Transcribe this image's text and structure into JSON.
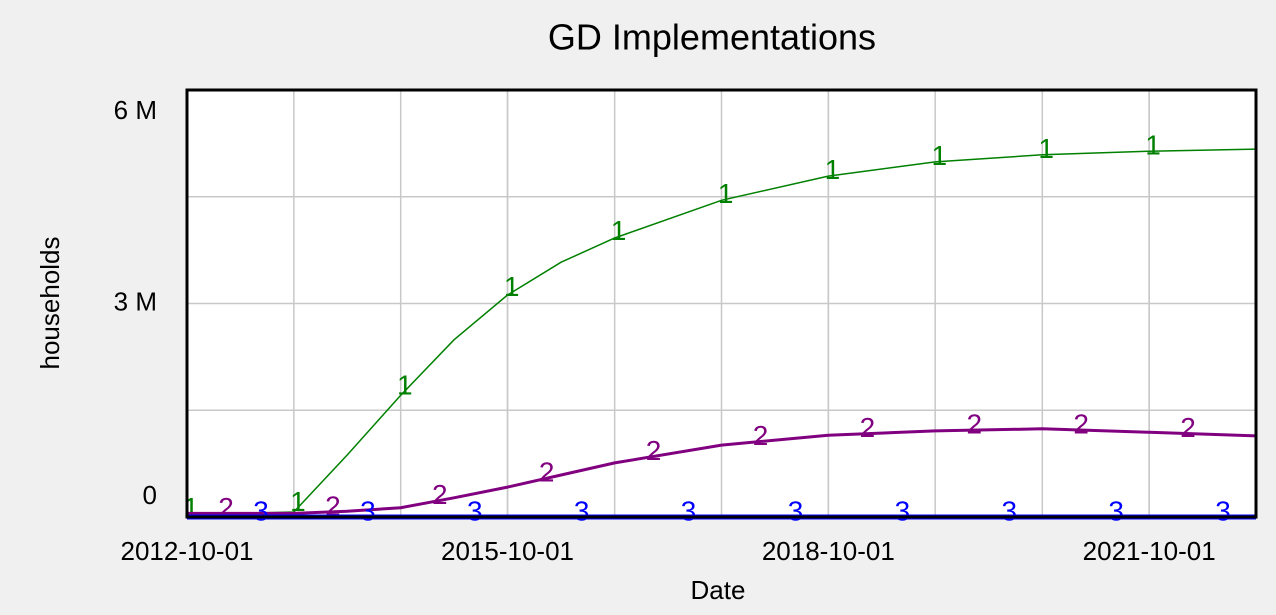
{
  "chart_data": {
    "type": "line",
    "title": "GD Implementations",
    "x_label": "Date",
    "y_label": "households",
    "x": [
      "2012-10-01",
      "2013-04-01",
      "2013-10-01",
      "2014-04-01",
      "2014-10-01",
      "2015-04-01",
      "2015-10-01",
      "2016-04-01",
      "2016-10-01",
      "2017-10-01",
      "2018-10-01",
      "2019-10-01",
      "2020-10-01",
      "2021-10-01",
      "2022-10-01"
    ],
    "series": [
      {
        "marker_label": "1",
        "color": "#008000",
        "width": 1.5,
        "values": [
          50000,
          50000,
          70000,
          870000,
          1710000,
          2490000,
          3120000,
          3580000,
          3920000,
          4450000,
          4790000,
          4990000,
          5090000,
          5140000,
          5170000
        ]
      },
      {
        "marker_label": "2",
        "color": "#800080",
        "width": 3,
        "values": [
          50000,
          50000,
          50000,
          80000,
          130000,
          270000,
          420000,
          590000,
          760000,
          1010000,
          1150000,
          1210000,
          1240000,
          1190000,
          1140000
        ]
      },
      {
        "marker_label": "3",
        "color": "#0000ff",
        "width": 5,
        "values": [
          0,
          0,
          0,
          0,
          0,
          0,
          0,
          0,
          0,
          0,
          0,
          0,
          0,
          0,
          0
        ]
      }
    ],
    "xlim": [
      "2012-10-01",
      "2022-10-01"
    ],
    "xticks": [
      "2012-10-01",
      "2015-10-01",
      "2018-10-01",
      "2021-10-01"
    ],
    "ylim": [
      0,
      6000000
    ],
    "yticks": [
      {
        "value": 0,
        "label": "0"
      },
      {
        "value": 3000000,
        "label": "3 M"
      },
      {
        "value": 6000000,
        "label": "6 M"
      }
    ],
    "grid": true
  }
}
